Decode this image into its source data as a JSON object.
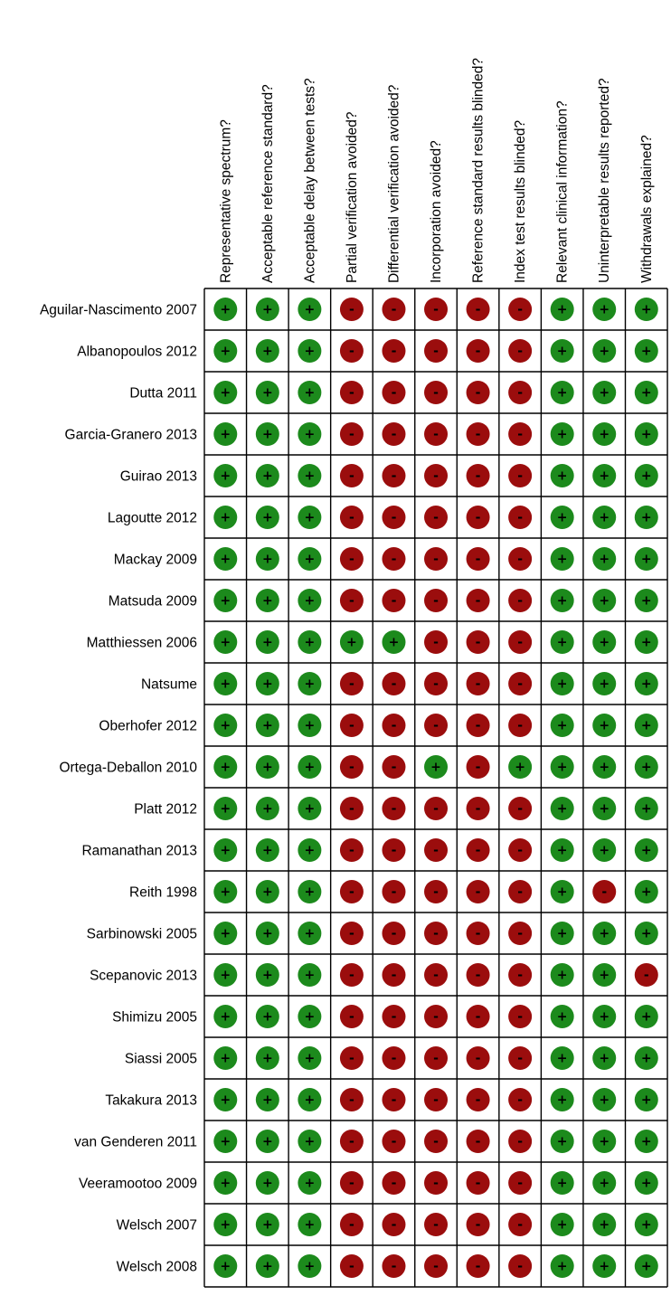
{
  "chart_data": {
    "type": "table",
    "title": "",
    "columns": [
      "Representative spectrum?",
      "Acceptable reference standard?",
      "Acceptable delay between tests?",
      "Partial verification avoided?",
      "Differential verification avoided?",
      "Incorporation avoided?",
      "Reference standard results blinded?",
      "Index test results blinded?",
      "Relevant clinical information?",
      "Uninterpretable results reported?",
      "Withdrawals explained?"
    ],
    "rows": [
      {
        "study": "Aguilar-Nascimento 2007",
        "values": [
          "+",
          "+",
          "+",
          "-",
          "-",
          "-",
          "-",
          "-",
          "+",
          "+",
          "+"
        ]
      },
      {
        "study": "Albanopoulos 2012",
        "values": [
          "+",
          "+",
          "+",
          "-",
          "-",
          "-",
          "-",
          "-",
          "+",
          "+",
          "+"
        ]
      },
      {
        "study": "Dutta 2011",
        "values": [
          "+",
          "+",
          "+",
          "-",
          "-",
          "-",
          "-",
          "-",
          "+",
          "+",
          "+"
        ]
      },
      {
        "study": "Garcia-Granero 2013",
        "values": [
          "+",
          "+",
          "+",
          "-",
          "-",
          "-",
          "-",
          "-",
          "+",
          "+",
          "+"
        ]
      },
      {
        "study": "Guirao 2013",
        "values": [
          "+",
          "+",
          "+",
          "-",
          "-",
          "-",
          "-",
          "-",
          "+",
          "+",
          "+"
        ]
      },
      {
        "study": "Lagoutte 2012",
        "values": [
          "+",
          "+",
          "+",
          "-",
          "-",
          "-",
          "-",
          "-",
          "+",
          "+",
          "+"
        ]
      },
      {
        "study": "Mackay 2009",
        "values": [
          "+",
          "+",
          "+",
          "-",
          "-",
          "-",
          "-",
          "-",
          "+",
          "+",
          "+"
        ]
      },
      {
        "study": "Matsuda 2009",
        "values": [
          "+",
          "+",
          "+",
          "-",
          "-",
          "-",
          "-",
          "-",
          "+",
          "+",
          "+"
        ]
      },
      {
        "study": "Matthiessen 2006",
        "values": [
          "+",
          "+",
          "+",
          "+",
          "+",
          "-",
          "-",
          "-",
          "+",
          "+",
          "+"
        ]
      },
      {
        "study": "Natsume",
        "values": [
          "+",
          "+",
          "+",
          "-",
          "-",
          "-",
          "-",
          "-",
          "+",
          "+",
          "+"
        ]
      },
      {
        "study": "Oberhofer 2012",
        "values": [
          "+",
          "+",
          "+",
          "-",
          "-",
          "-",
          "-",
          "-",
          "+",
          "+",
          "+"
        ]
      },
      {
        "study": "Ortega-Deballon 2010",
        "values": [
          "+",
          "+",
          "+",
          "-",
          "-",
          "+",
          "-",
          "+",
          "+",
          "+",
          "+"
        ]
      },
      {
        "study": "Platt 2012",
        "values": [
          "+",
          "+",
          "+",
          "-",
          "-",
          "-",
          "-",
          "-",
          "+",
          "+",
          "+"
        ]
      },
      {
        "study": "Ramanathan 2013",
        "values": [
          "+",
          "+",
          "+",
          "-",
          "-",
          "-",
          "-",
          "-",
          "+",
          "+",
          "+"
        ]
      },
      {
        "study": "Reith 1998",
        "values": [
          "+",
          "+",
          "+",
          "-",
          "-",
          "-",
          "-",
          "-",
          "+",
          "-",
          "+"
        ]
      },
      {
        "study": "Sarbinowski 2005",
        "values": [
          "+",
          "+",
          "+",
          "-",
          "-",
          "-",
          "-",
          "-",
          "+",
          "+",
          "+"
        ]
      },
      {
        "study": "Scepanovic 2013",
        "values": [
          "+",
          "+",
          "+",
          "-",
          "-",
          "-",
          "-",
          "-",
          "+",
          "+",
          "-"
        ]
      },
      {
        "study": "Shimizu 2005",
        "values": [
          "+",
          "+",
          "+",
          "-",
          "-",
          "-",
          "-",
          "-",
          "+",
          "+",
          "+"
        ]
      },
      {
        "study": "Siassi 2005",
        "values": [
          "+",
          "+",
          "+",
          "-",
          "-",
          "-",
          "-",
          "-",
          "+",
          "+",
          "+"
        ]
      },
      {
        "study": "Takakura 2013",
        "values": [
          "+",
          "+",
          "+",
          "-",
          "-",
          "-",
          "-",
          "-",
          "+",
          "+",
          "+"
        ]
      },
      {
        "study": "van Genderen 2011",
        "values": [
          "+",
          "+",
          "+",
          "-",
          "-",
          "-",
          "-",
          "-",
          "+",
          "+",
          "+"
        ]
      },
      {
        "study": "Veeramootoo 2009",
        "values": [
          "+",
          "+",
          "+",
          "-",
          "-",
          "-",
          "-",
          "-",
          "+",
          "+",
          "+"
        ]
      },
      {
        "study": "Welsch 2007",
        "values": [
          "+",
          "+",
          "+",
          "-",
          "-",
          "-",
          "-",
          "-",
          "+",
          "+",
          "+"
        ]
      },
      {
        "study": "Welsch 2008",
        "values": [
          "+",
          "+",
          "+",
          "-",
          "-",
          "-",
          "-",
          "-",
          "+",
          "+",
          "+"
        ]
      }
    ],
    "colors": {
      "low_risk": "#1c8a1c",
      "high_risk": "#9b0d0d",
      "grid": "#000000"
    }
  }
}
